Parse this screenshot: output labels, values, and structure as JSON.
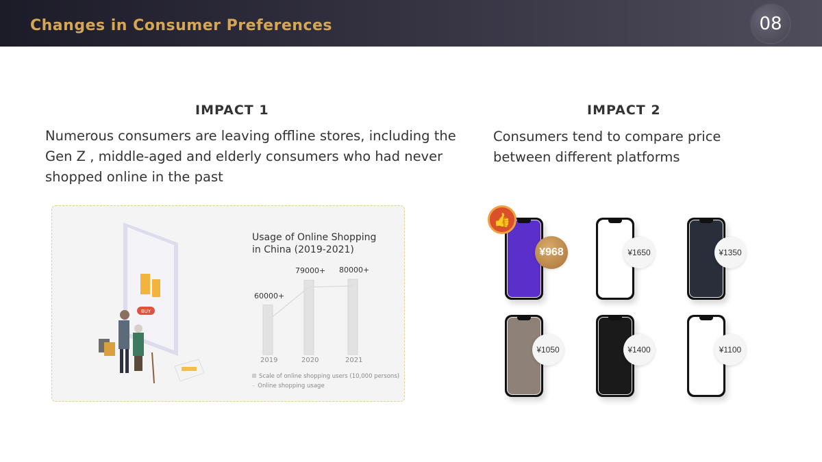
{
  "header": {
    "title": "Changes in Consumer Preferences",
    "page_number": "08"
  },
  "impact1": {
    "heading": "IMPACT 1",
    "text": "Numerous consumers are leaving offline stores, including the Gen Z , middle-aged and elderly consumers who had never shopped online in the past"
  },
  "impact2": {
    "heading": "IMPACT 2",
    "text": "Consumers tend to compare price between different platforms"
  },
  "illustration": {
    "buy_label": "BUY"
  },
  "chart_data": {
    "type": "bar",
    "title": "Usage of Online Shopping in China (2019-2021)",
    "categories": [
      "2019",
      "2020",
      "2021"
    ],
    "series": [
      {
        "name": "Scale of online shopping users (10,000 persons)",
        "type": "bar",
        "values": [
          60000,
          79000,
          80000
        ],
        "labels": [
          "60000+",
          "79000+",
          "80000+"
        ]
      },
      {
        "name": "Online shopping usage",
        "type": "line"
      }
    ],
    "legend": "bottom-left",
    "grid": false
  },
  "prices": [
    {
      "label": "¥968",
      "best": true,
      "screen": "#5b2fc9"
    },
    {
      "label": "¥1650",
      "best": false,
      "screen": "#ffffff"
    },
    {
      "label": "¥1350",
      "best": false,
      "screen": "#2a2d3a"
    },
    {
      "label": "¥1050",
      "best": false,
      "screen": "#8d8178"
    },
    {
      "label": "¥1400",
      "best": false,
      "screen": "#1a1a1a"
    },
    {
      "label": "¥1100",
      "best": false,
      "screen": "#ffffff"
    }
  ],
  "colors": {
    "accent": "#d4a656",
    "badge_gold": "#b98246",
    "thumb_badge": "#d9502a"
  }
}
